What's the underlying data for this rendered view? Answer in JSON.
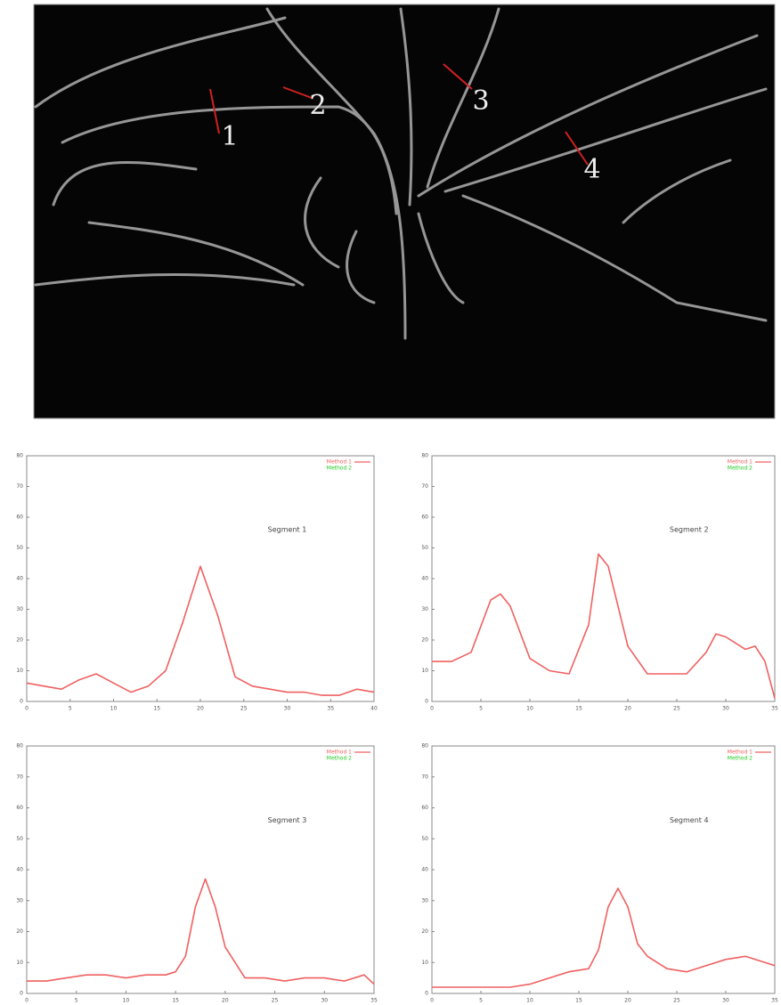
{
  "figure": {
    "image_labels": [
      "1",
      "2",
      "3",
      "4"
    ]
  },
  "chart_data": [
    {
      "type": "line",
      "title": "Segment 1",
      "x": [
        0,
        2,
        4,
        6,
        8,
        10,
        12,
        14,
        16,
        18,
        20,
        22,
        24,
        26,
        28,
        30,
        32,
        34,
        36,
        38,
        40
      ],
      "series": [
        {
          "name": "Method 1",
          "color": "#f06060",
          "values": [
            6,
            5,
            4,
            7,
            9,
            6,
            3,
            5,
            10,
            26,
            44,
            28,
            8,
            5,
            4,
            3,
            3,
            2,
            2,
            4,
            3
          ]
        },
        {
          "name": "Method 2",
          "color": "#22cc22",
          "values": [
            null,
            null,
            null,
            null,
            null,
            null,
            null,
            null,
            null,
            null,
            null,
            null,
            null,
            null,
            null,
            null,
            null,
            null,
            null,
            null,
            null
          ]
        }
      ],
      "xlim": [
        0,
        40
      ],
      "xticks": [
        0,
        5,
        10,
        15,
        20,
        25,
        30,
        35,
        40
      ],
      "ylim": [
        0,
        80
      ],
      "yticks": [
        0,
        10,
        20,
        30,
        40,
        50,
        60,
        70,
        80
      ]
    },
    {
      "type": "line",
      "title": "Segment 2",
      "x": [
        0,
        2,
        4,
        6,
        7,
        8,
        10,
        12,
        14,
        16,
        17,
        18,
        20,
        22,
        24,
        26,
        28,
        29,
        30,
        32,
        33,
        34,
        35
      ],
      "series": [
        {
          "name": "Method 1",
          "color": "#f06060",
          "values": [
            13,
            13,
            16,
            33,
            35,
            31,
            14,
            10,
            9,
            25,
            48,
            44,
            18,
            9,
            9,
            9,
            16,
            22,
            21,
            17,
            18,
            13,
            1
          ]
        },
        {
          "name": "Method 2",
          "color": "#22cc22",
          "values": [
            null,
            null,
            null,
            null,
            null,
            null,
            null,
            null,
            null,
            null,
            null,
            null,
            null,
            null,
            null,
            null,
            null,
            null,
            null,
            null,
            null,
            null,
            null
          ]
        }
      ],
      "xlim": [
        0,
        35
      ],
      "xticks": [
        0,
        5,
        10,
        15,
        20,
        25,
        30,
        35
      ],
      "ylim": [
        0,
        80
      ],
      "yticks": [
        0,
        10,
        20,
        30,
        40,
        50,
        60,
        70,
        80
      ]
    },
    {
      "type": "line",
      "title": "Segment 3",
      "x": [
        0,
        2,
        4,
        6,
        8,
        10,
        12,
        14,
        15,
        16,
        17,
        18,
        19,
        20,
        22,
        24,
        26,
        28,
        30,
        32,
        34,
        35
      ],
      "series": [
        {
          "name": "Method 1",
          "color": "#f06060",
          "values": [
            4,
            4,
            5,
            6,
            6,
            5,
            6,
            6,
            7,
            12,
            28,
            37,
            28,
            15,
            5,
            5,
            4,
            5,
            5,
            4,
            6,
            3
          ]
        },
        {
          "name": "Method 2",
          "color": "#22cc22",
          "values": [
            null,
            null,
            null,
            null,
            null,
            null,
            null,
            null,
            null,
            null,
            null,
            null,
            null,
            null,
            null,
            null,
            null,
            null,
            null,
            null,
            null,
            null
          ]
        }
      ],
      "xlim": [
        0,
        35
      ],
      "xticks": [
        0,
        5,
        10,
        15,
        20,
        25,
        30,
        35
      ],
      "ylim": [
        0,
        80
      ],
      "yticks": [
        0,
        10,
        20,
        30,
        40,
        50,
        60,
        70,
        80
      ]
    },
    {
      "type": "line",
      "title": "Segment 4",
      "x": [
        0,
        2,
        4,
        6,
        8,
        10,
        12,
        14,
        16,
        17,
        18,
        19,
        20,
        21,
        22,
        24,
        26,
        28,
        30,
        32,
        34,
        35
      ],
      "series": [
        {
          "name": "Method 1",
          "color": "#f06060",
          "values": [
            2,
            2,
            2,
            2,
            2,
            3,
            5,
            7,
            8,
            14,
            28,
            34,
            28,
            16,
            12,
            8,
            7,
            9,
            11,
            12,
            10,
            9
          ]
        },
        {
          "name": "Method 2",
          "color": "#22cc22",
          "values": [
            null,
            null,
            null,
            null,
            null,
            null,
            null,
            null,
            null,
            null,
            null,
            null,
            null,
            null,
            null,
            null,
            null,
            null,
            null,
            null,
            null,
            null
          ]
        }
      ],
      "xlim": [
        0,
        35
      ],
      "xticks": [
        0,
        5,
        10,
        15,
        20,
        25,
        30,
        35
      ],
      "ylim": [
        0,
        80
      ],
      "yticks": [
        0,
        10,
        20,
        30,
        40,
        50,
        60,
        70,
        80
      ]
    }
  ]
}
